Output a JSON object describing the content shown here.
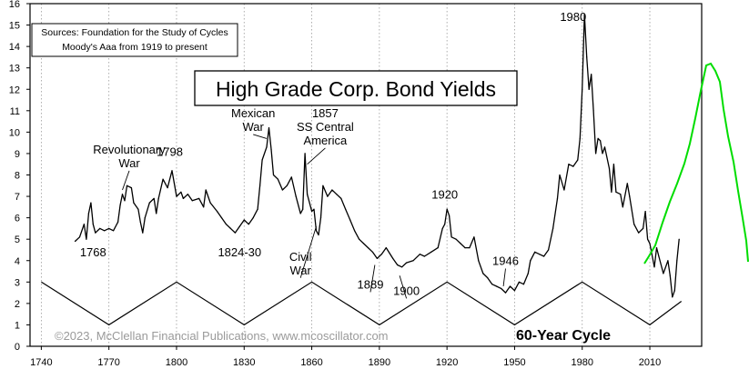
{
  "chart_data": {
    "type": "line",
    "title": "High Grade Corp. Bond Yields",
    "sources": [
      "Sources: Foundation for the Study of Cycles",
      "Moody's Aaa from 1919 to present"
    ],
    "copyright": "©2023, McClellan Financial Publications, www.mcoscillator.com",
    "cycle_label": "60-Year Cycle",
    "xlim": [
      1735,
      2033
    ],
    "ylim": [
      0,
      16
    ],
    "x_ticks": [
      1740,
      1770,
      1800,
      1830,
      1860,
      1890,
      1920,
      1950,
      1980,
      2010
    ],
    "y_ticks": [
      0,
      1,
      2,
      3,
      4,
      5,
      6,
      7,
      8,
      9,
      10,
      11,
      12,
      13,
      14,
      15,
      16
    ],
    "grid": "vertical dotted",
    "colors": {
      "series": "#000000",
      "cycle": "#000000",
      "projection": "#00dd00",
      "frame": "#000000"
    },
    "series": [
      {
        "name": "yield",
        "points": [
          [
            1755,
            4.9
          ],
          [
            1757,
            5.1
          ],
          [
            1759,
            5.7
          ],
          [
            1760,
            5.0
          ],
          [
            1761,
            6.2
          ],
          [
            1762,
            6.7
          ],
          [
            1763,
            5.7
          ],
          [
            1764,
            5.3
          ],
          [
            1766,
            5.5
          ],
          [
            1768,
            5.4
          ],
          [
            1770,
            5.5
          ],
          [
            1772,
            5.4
          ],
          [
            1774,
            5.8
          ],
          [
            1775,
            6.6
          ],
          [
            1776,
            7.1
          ],
          [
            1777,
            6.8
          ],
          [
            1778,
            7.5
          ],
          [
            1780,
            7.4
          ],
          [
            1781,
            6.7
          ],
          [
            1783,
            6.4
          ],
          [
            1784,
            5.8
          ],
          [
            1785,
            5.3
          ],
          [
            1786,
            6.0
          ],
          [
            1788,
            6.7
          ],
          [
            1790,
            6.9
          ],
          [
            1791,
            6.2
          ],
          [
            1792,
            6.9
          ],
          [
            1794,
            7.8
          ],
          [
            1796,
            7.4
          ],
          [
            1798,
            8.2
          ],
          [
            1799,
            7.6
          ],
          [
            1800,
            7.0
          ],
          [
            1802,
            7.2
          ],
          [
            1803,
            6.9
          ],
          [
            1805,
            7.1
          ],
          [
            1807,
            6.8
          ],
          [
            1810,
            6.9
          ],
          [
            1812,
            6.5
          ],
          [
            1813,
            7.3
          ],
          [
            1815,
            6.7
          ],
          [
            1818,
            6.3
          ],
          [
            1820,
            6.0
          ],
          [
            1822,
            5.7
          ],
          [
            1824,
            5.5
          ],
          [
            1826,
            5.3
          ],
          [
            1828,
            5.6
          ],
          [
            1830,
            5.9
          ],
          [
            1832,
            5.7
          ],
          [
            1834,
            6.0
          ],
          [
            1836,
            6.4
          ],
          [
            1837,
            7.5
          ],
          [
            1838,
            8.7
          ],
          [
            1840,
            9.3
          ],
          [
            1841,
            10.2
          ],
          [
            1842,
            9.2
          ],
          [
            1843,
            8.0
          ],
          [
            1845,
            7.8
          ],
          [
            1847,
            7.3
          ],
          [
            1849,
            7.5
          ],
          [
            1851,
            7.9
          ],
          [
            1853,
            7.0
          ],
          [
            1855,
            6.2
          ],
          [
            1856,
            6.4
          ],
          [
            1857,
            9.0
          ],
          [
            1858,
            7.1
          ],
          [
            1860,
            6.3
          ],
          [
            1861,
            6.4
          ],
          [
            1862,
            5.4
          ],
          [
            1863,
            5.2
          ],
          [
            1864,
            6.0
          ],
          [
            1865,
            7.5
          ],
          [
            1867,
            7.0
          ],
          [
            1869,
            7.3
          ],
          [
            1871,
            7.1
          ],
          [
            1873,
            6.9
          ],
          [
            1875,
            6.4
          ],
          [
            1877,
            5.9
          ],
          [
            1879,
            5.4
          ],
          [
            1881,
            5.0
          ],
          [
            1883,
            4.8
          ],
          [
            1885,
            4.6
          ],
          [
            1887,
            4.4
          ],
          [
            1889,
            4.1
          ],
          [
            1891,
            4.3
          ],
          [
            1893,
            4.6
          ],
          [
            1896,
            4.1
          ],
          [
            1898,
            3.8
          ],
          [
            1900,
            3.7
          ],
          [
            1902,
            3.9
          ],
          [
            1905,
            4.0
          ],
          [
            1908,
            4.3
          ],
          [
            1910,
            4.2
          ],
          [
            1913,
            4.4
          ],
          [
            1916,
            4.6
          ],
          [
            1918,
            5.5
          ],
          [
            1919,
            5.7
          ],
          [
            1920,
            6.4
          ],
          [
            1921,
            6.1
          ],
          [
            1922,
            5.1
          ],
          [
            1924,
            5.0
          ],
          [
            1926,
            4.8
          ],
          [
            1928,
            4.6
          ],
          [
            1930,
            4.6
          ],
          [
            1932,
            5.1
          ],
          [
            1934,
            4.0
          ],
          [
            1936,
            3.4
          ],
          [
            1938,
            3.2
          ],
          [
            1940,
            2.9
          ],
          [
            1942,
            2.8
          ],
          [
            1944,
            2.7
          ],
          [
            1946,
            2.5
          ],
          [
            1948,
            2.8
          ],
          [
            1950,
            2.6
          ],
          [
            1952,
            3.0
          ],
          [
            1954,
            2.9
          ],
          [
            1956,
            3.4
          ],
          [
            1957,
            4.0
          ],
          [
            1959,
            4.4
          ],
          [
            1961,
            4.3
          ],
          [
            1963,
            4.2
          ],
          [
            1965,
            4.5
          ],
          [
            1967,
            5.5
          ],
          [
            1969,
            6.9
          ],
          [
            1970,
            8.0
          ],
          [
            1972,
            7.3
          ],
          [
            1974,
            8.5
          ],
          [
            1976,
            8.4
          ],
          [
            1978,
            8.7
          ],
          [
            1979,
            9.7
          ],
          [
            1980,
            12.0
          ],
          [
            1981,
            15.5
          ],
          [
            1982,
            13.5
          ],
          [
            1983,
            12.0
          ],
          [
            1984,
            12.7
          ],
          [
            1985,
            11.0
          ],
          [
            1986,
            9.0
          ],
          [
            1987,
            9.7
          ],
          [
            1988,
            9.6
          ],
          [
            1989,
            9.0
          ],
          [
            1990,
            9.3
          ],
          [
            1992,
            8.3
          ],
          [
            1993,
            7.2
          ],
          [
            1994,
            8.5
          ],
          [
            1995,
            7.2
          ],
          [
            1997,
            7.1
          ],
          [
            1998,
            6.5
          ],
          [
            2000,
            7.6
          ],
          [
            2001,
            7.0
          ],
          [
            2003,
            5.7
          ],
          [
            2005,
            5.3
          ],
          [
            2007,
            5.5
          ],
          [
            2008,
            6.3
          ],
          [
            2009,
            5.0
          ],
          [
            2010,
            4.8
          ],
          [
            2012,
            3.7
          ],
          [
            2013,
            4.6
          ],
          [
            2014,
            4.2
          ],
          [
            2016,
            3.4
          ],
          [
            2018,
            4.0
          ],
          [
            2019,
            3.3
          ],
          [
            2020,
            2.3
          ],
          [
            2021,
            2.6
          ],
          [
            2022,
            4.0
          ],
          [
            2023,
            5.0
          ]
        ]
      },
      {
        "name": "cycle",
        "points": [
          [
            1740,
            3.0
          ],
          [
            1770,
            1.0
          ],
          [
            1800,
            3.0
          ],
          [
            1830,
            1.0
          ],
          [
            1860,
            3.0
          ],
          [
            1890,
            1.0
          ],
          [
            1920,
            3.0
          ],
          [
            1950,
            1.0
          ],
          [
            1980,
            3.0
          ],
          [
            2010,
            1.0
          ],
          [
            2024,
            2.1
          ]
        ]
      }
    ],
    "annotations": [
      {
        "lines": [
          "Revolutionary",
          "War"
        ],
        "at": [
          1779,
          9.0
        ],
        "arrow_to": [
          1776,
          7.3
        ]
      },
      {
        "lines": [
          "1798"
        ],
        "at": [
          1797,
          8.9
        ]
      },
      {
        "lines": [
          "1768"
        ],
        "at": [
          1763,
          4.2
        ]
      },
      {
        "lines": [
          "Mexican",
          "War"
        ],
        "at": [
          1834,
          10.7
        ],
        "arrow_to": [
          1840,
          9.7
        ]
      },
      {
        "lines": [
          "1857",
          "SS Central",
          "America"
        ],
        "at": [
          1866,
          10.7
        ],
        "arrow_to": [
          1858,
          8.5
        ]
      },
      {
        "lines": [
          "1824-30"
        ],
        "at": [
          1828,
          4.2
        ]
      },
      {
        "lines": [
          "Civil",
          "War"
        ],
        "at": [
          1855,
          4.0
        ],
        "arrow_to": [
          1862,
          5.6
        ]
      },
      {
        "lines": [
          "1889"
        ],
        "at": [
          1886,
          2.7
        ],
        "arrow_to": [
          1888,
          3.8
        ]
      },
      {
        "lines": [
          "1900"
        ],
        "at": [
          1902,
          2.4
        ],
        "arrow_to": [
          1899,
          3.3
        ]
      },
      {
        "lines": [
          "1920"
        ],
        "at": [
          1919,
          6.9
        ]
      },
      {
        "lines": [
          "1946"
        ],
        "at": [
          1946,
          3.8
        ],
        "arrow_to": [
          1945,
          2.8
        ]
      },
      {
        "lines": [
          "1980"
        ],
        "at": [
          1976,
          15.2
        ]
      }
    ]
  }
}
